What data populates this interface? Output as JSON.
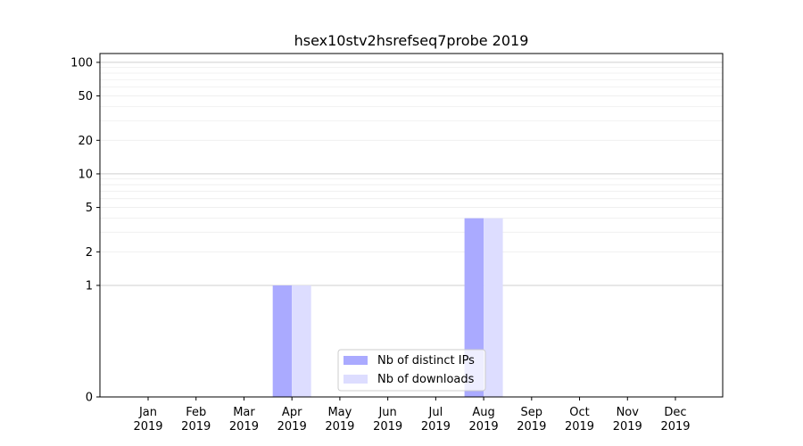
{
  "chart_data": {
    "type": "bar",
    "title": "hsex10stv2hsrefseq7probe 2019",
    "xlabel": "",
    "ylabel": "",
    "y_scale": "symlog",
    "ylim": [
      0,
      120
    ],
    "y_ticks": [
      0,
      1,
      2,
      5,
      10,
      20,
      50,
      100
    ],
    "categories": [
      "Jan\n2019",
      "Feb\n2019",
      "Mar\n2019",
      "Apr\n2019",
      "May\n2019",
      "Jun\n2019",
      "Jul\n2019",
      "Aug\n2019",
      "Sep\n2019",
      "Oct\n2019",
      "Nov\n2019",
      "Dec\n2019"
    ],
    "series": [
      {
        "name": "Nb of distinct IPs",
        "color": "#aaaaff",
        "values": [
          0,
          0,
          0,
          1,
          0,
          0,
          0,
          4,
          0,
          0,
          0,
          0
        ]
      },
      {
        "name": "Nb of downloads",
        "color": "#ddddff",
        "values": [
          0,
          0,
          0,
          1,
          0,
          0,
          0,
          4,
          0,
          0,
          0,
          0
        ]
      }
    ],
    "grid": true,
    "legend_position": "lower-center"
  }
}
